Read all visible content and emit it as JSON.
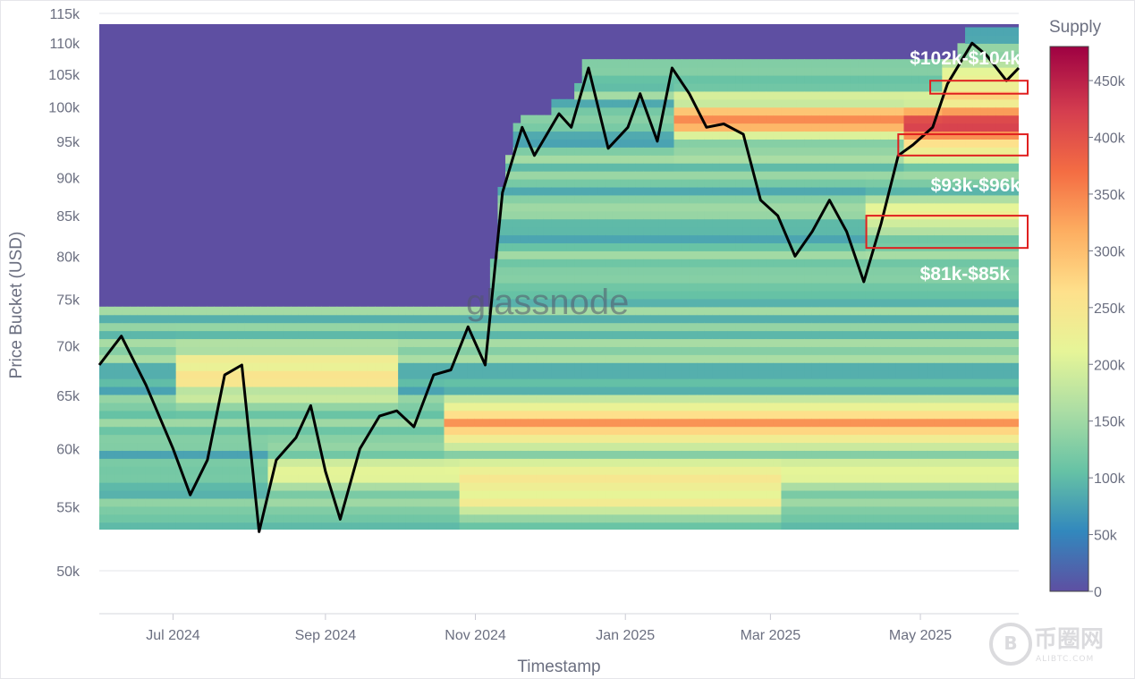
{
  "chart_data": {
    "type": "heatmap",
    "title": "",
    "xlabel": "Timestamp",
    "ylabel": "Price Bucket (USD)",
    "x_ticks": [
      "Jul 2024",
      "Sep 2024",
      "Nov 2024",
      "Jan 2025",
      "Mar 2025",
      "May 2025"
    ],
    "y_ticks": [
      "50k",
      "55k",
      "60k",
      "65k",
      "70k",
      "75k",
      "80k",
      "85k",
      "90k",
      "95k",
      "100k",
      "105k",
      "110k",
      "115k"
    ],
    "y_scale": "log",
    "xlim": [
      "2024-06-01",
      "2025-06-10"
    ],
    "ylim": [
      49000,
      115000
    ],
    "colorbar": {
      "label": "Supply",
      "ticks": [
        "0",
        "50k",
        "100k",
        "150k",
        "200k",
        "250k",
        "300k",
        "350k",
        "400k",
        "450k"
      ],
      "range": [
        0,
        480000
      ],
      "colors": [
        "#5e4fa2",
        "#3288bd",
        "#66c2a5",
        "#abdda4",
        "#e6f598",
        "#fee08b",
        "#fdae61",
        "#f46d43",
        "#d53e4f",
        "#9e0142"
      ]
    },
    "price_series": {
      "name": "Price",
      "x": [
        "2024-06-01",
        "2024-06-10",
        "2024-06-20",
        "2024-07-01",
        "2024-07-08",
        "2024-07-15",
        "2024-07-22",
        "2024-07-29",
        "2024-08-05",
        "2024-08-12",
        "2024-08-20",
        "2024-08-26",
        "2024-09-01",
        "2024-09-07",
        "2024-09-15",
        "2024-09-23",
        "2024-09-30",
        "2024-10-07",
        "2024-10-15",
        "2024-10-22",
        "2024-10-29",
        "2024-11-05",
        "2024-11-12",
        "2024-11-20",
        "2024-11-25",
        "2024-12-05",
        "2024-12-10",
        "2024-12-17",
        "2024-12-25",
        "2025-01-02",
        "2025-01-07",
        "2025-01-14",
        "2025-01-20",
        "2025-01-27",
        "2025-02-03",
        "2025-02-10",
        "2025-02-18",
        "2025-02-25",
        "2025-03-04",
        "2025-03-11",
        "2025-03-18",
        "2025-03-25",
        "2025-04-01",
        "2025-04-08",
        "2025-04-15",
        "2025-04-22",
        "2025-04-28",
        "2025-05-06",
        "2025-05-12",
        "2025-05-22",
        "2025-05-28",
        "2025-06-05",
        "2025-06-10"
      ],
      "y": [
        68000,
        71000,
        66000,
        60000,
        56000,
        59000,
        67000,
        68000,
        53000,
        59000,
        61000,
        64000,
        58000,
        54000,
        60000,
        63000,
        63500,
        62000,
        67000,
        67500,
        72000,
        68000,
        88000,
        97000,
        93000,
        99000,
        97000,
        106000,
        94000,
        97000,
        102000,
        95000,
        106000,
        102000,
        97000,
        97500,
        96000,
        87000,
        85000,
        80000,
        83000,
        87000,
        83000,
        77000,
        84000,
        93000,
        94500,
        97000,
        103500,
        110000,
        108000,
        104000,
        106000
      ]
    },
    "annotations": [
      {
        "label": "$102k-$104k",
        "y_range": [
          102000,
          104000
        ],
        "x_range": [
          "2025-05-05",
          "2025-06-10"
        ]
      },
      {
        "label": "$93k-$96k",
        "y_range": [
          93000,
          96000
        ],
        "x_range": [
          "2025-04-22",
          "2025-06-10"
        ]
      },
      {
        "label": "$81k-$85k",
        "y_range": [
          81000,
          85000
        ],
        "x_range": [
          "2025-04-09",
          "2025-06-10"
        ]
      }
    ],
    "watermark": "glassnode"
  },
  "logo": {
    "symbol": "B",
    "text": "币圈网",
    "url": "ALIBTC.COM"
  }
}
